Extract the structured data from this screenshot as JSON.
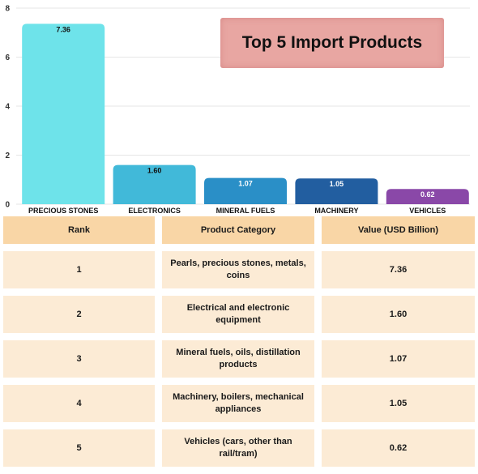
{
  "chart_data": {
    "type": "bar",
    "title": "Top 5 Import Products",
    "categories": [
      "PRECIOUS STONES",
      "ELECTRONICS",
      "MINERAL FUELS",
      "MACHINERY",
      "VEHICLES"
    ],
    "values": [
      7.36,
      1.6,
      1.07,
      1.05,
      0.62
    ],
    "value_labels": [
      "7.36",
      "1.60",
      "1.07",
      "1.05",
      "0.62"
    ],
    "bar_colors": [
      "#6ee3ea",
      "#41b9d9",
      "#2a8fc7",
      "#225ea0",
      "#8a48a8"
    ],
    "label_colors": [
      "#111111",
      "#111111",
      "#ffffff",
      "#ffffff",
      "#ffffff"
    ],
    "yticks": [
      "0",
      "2",
      "4",
      "6",
      "8"
    ],
    "ylim": [
      0,
      8
    ],
    "xlabel": "",
    "ylabel": "",
    "grid": true
  },
  "table": {
    "headers": [
      "Rank",
      "Product Category",
      "Value (USD Billion)"
    ],
    "rows": [
      {
        "rank": "1",
        "category": "Pearls, precious stones, metals, coins",
        "value": "7.36"
      },
      {
        "rank": "2",
        "category": "Electrical and electronic equipment",
        "value": "1.60"
      },
      {
        "rank": "3",
        "category": "Mineral fuels, oils, distillation products",
        "value": "1.07"
      },
      {
        "rank": "4",
        "category": "Machinery, boilers, mechanical appliances",
        "value": "1.05"
      },
      {
        "rank": "5",
        "category": "Vehicles (cars, other than rail/tram)",
        "value": "0.62"
      }
    ]
  }
}
